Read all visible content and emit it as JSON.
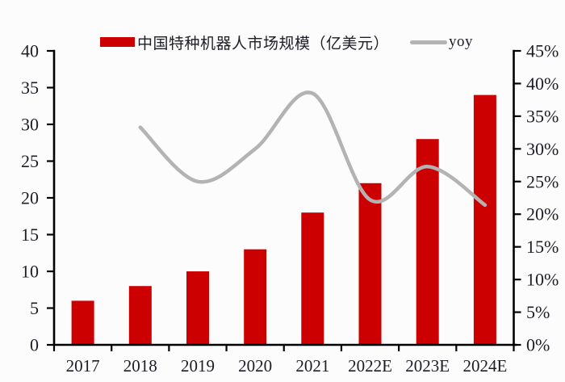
{
  "chart_data": {
    "type": "combo",
    "categories": [
      "2017",
      "2018",
      "2019",
      "2020",
      "2021",
      "2022E",
      "2023E",
      "2024E"
    ],
    "series": [
      {
        "name": "中国特种机器人市场规模（亿美元）",
        "type": "bar",
        "axis": "left",
        "values": [
          6,
          8,
          10,
          13,
          18,
          22,
          28,
          34
        ]
      },
      {
        "name": "yoy",
        "type": "line",
        "axis": "right",
        "unit": "%",
        "values": [
          null,
          33.3,
          25.0,
          30.0,
          38.5,
          22.2,
          27.3,
          21.4
        ]
      }
    ],
    "left_axis": {
      "min": 0,
      "max": 40,
      "step": 5,
      "tick_labels": [
        "0",
        "5",
        "10",
        "15",
        "20",
        "25",
        "30",
        "35",
        "40"
      ]
    },
    "right_axis": {
      "min": 0,
      "max": 45,
      "step": 5,
      "tick_labels": [
        "0%",
        "5%",
        "10%",
        "15%",
        "20%",
        "25%",
        "30%",
        "35%",
        "40%",
        "45%"
      ]
    },
    "title": "",
    "legend_position": "top",
    "grid": false,
    "smoothed_line": true,
    "colors": {
      "bar": "#cc0000",
      "line": "#b3b3b3",
      "axis": "#000000",
      "text": "#1d1d26",
      "background": "#fcfcfc"
    }
  }
}
